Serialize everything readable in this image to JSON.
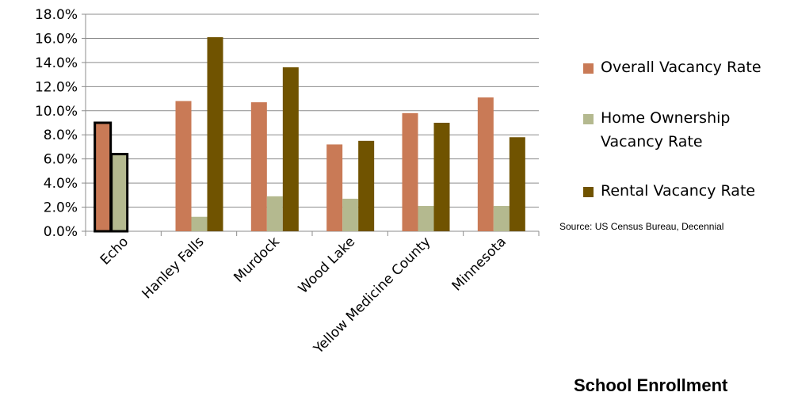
{
  "chart_data": {
    "type": "bar",
    "categories": [
      "Echo",
      "Hanley Falls",
      "Murdock",
      "Wood Lake",
      "Yellow Medicine County",
      "Minnesota"
    ],
    "series": [
      {
        "name": "Overall Vacancy Rate",
        "color": "#c97a56",
        "values": [
          9.0,
          10.8,
          10.7,
          7.2,
          9.8,
          11.1
        ]
      },
      {
        "name": "Home Ownership Vacancy Rate",
        "color": "#b4b98f",
        "values": [
          6.4,
          1.2,
          2.9,
          2.7,
          2.1,
          2.1
        ]
      },
      {
        "name": "Rental Vacancy Rate",
        "color": "#705300",
        "values": [
          null,
          16.1,
          13.6,
          7.5,
          9.0,
          7.8
        ]
      }
    ],
    "y_ticks": [
      "0.0%",
      "2.0%",
      "4.0%",
      "6.0%",
      "8.0%",
      "10.0%",
      "12.0%",
      "14.0%",
      "16.0%",
      "18.0%"
    ],
    "ylim": [
      0,
      18
    ],
    "highlighted_category": "Echo",
    "grid": true,
    "legend_position": "right"
  },
  "legend": [
    {
      "text": "Overall Vacancy Rate",
      "color": "#c97a56"
    },
    {
      "text": "Home Ownership Vacancy Rate",
      "color": "#b4b98f"
    },
    {
      "text": "Rental Vacancy Rate",
      "color": "#705300"
    }
  ],
  "source_note": "Source: US Census Bureau, Decennial",
  "bottom_heading": "School Enrollment"
}
